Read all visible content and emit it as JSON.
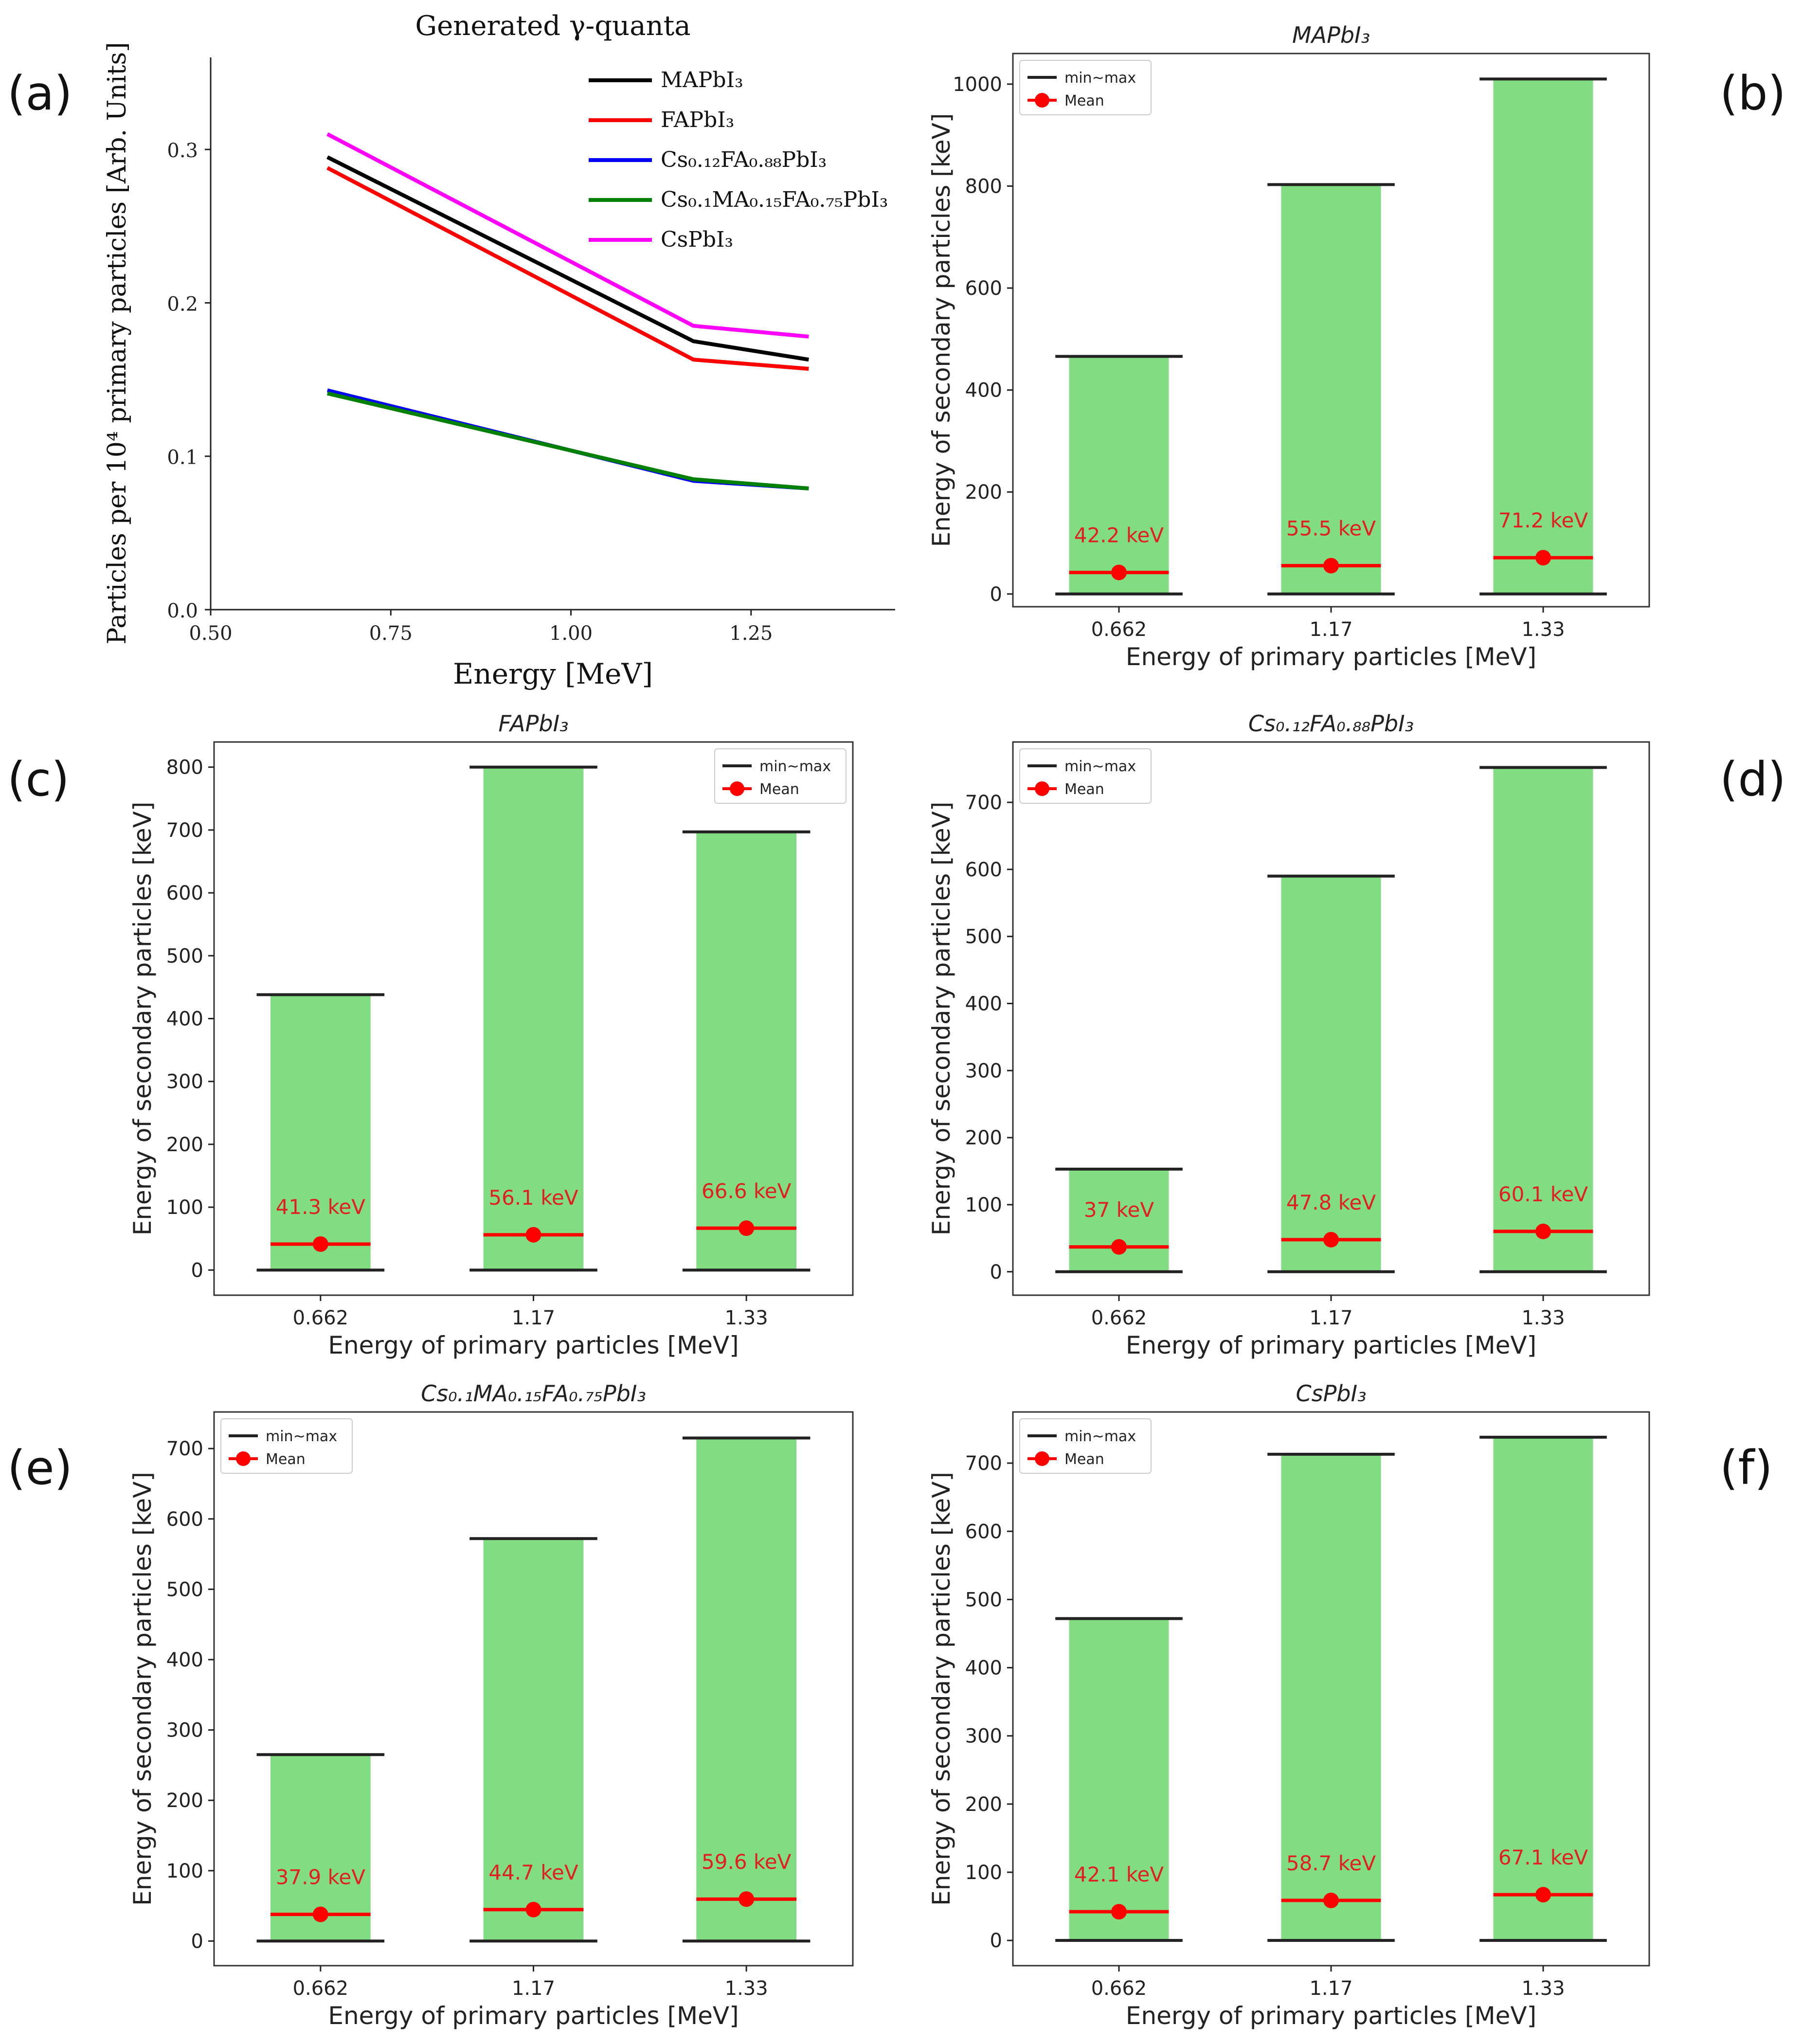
{
  "colors": {
    "bar_fill": "#82dd82",
    "minmax_line": "#222222",
    "mean": "#ff0000",
    "mean_label": "#e02020",
    "frame": "#333333"
  },
  "panel_labels": [
    "(a)",
    "(b)",
    "(c)",
    "(d)",
    "(e)",
    "(f)"
  ],
  "chart_data": [
    {
      "id": "a",
      "type": "line",
      "title": "Generated γ-quanta",
      "xlabel": "Energy [MeV]",
      "ylabel": "Particles per 10⁴ primary particles [Arb. Units]",
      "xlim": [
        0.5,
        1.45
      ],
      "ylim": [
        0,
        0.36
      ],
      "xticks": [
        0.5,
        0.75,
        1.0,
        1.25
      ],
      "xtick_labels": [
        "0.50",
        "0.75",
        "1.00",
        "1.25"
      ],
      "yticks": [
        0,
        0.1,
        0.2,
        0.3
      ],
      "ytick_labels": [
        "0.0",
        "0.1",
        "0.2",
        "0.3"
      ],
      "x": [
        0.662,
        1.17,
        1.33
      ],
      "series": [
        {
          "name": "MAPbI₃",
          "color": "#000000",
          "values": [
            0.295,
            0.175,
            0.163
          ]
        },
        {
          "name": "FAPbI₃",
          "color": "#ff0000",
          "values": [
            0.288,
            0.163,
            0.157
          ]
        },
        {
          "name": "Cs₀.₁₂FA₀.₈₈PbI₃",
          "color": "#0000ff",
          "values": [
            0.143,
            0.084,
            0.079
          ]
        },
        {
          "name": "Cs₀.₁MA₀.₁₅FA₀.₇₅PbI₃",
          "color": "#008000",
          "values": [
            0.141,
            0.085,
            0.079
          ]
        },
        {
          "name": "CsPbI₃",
          "color": "#ff00ff",
          "values": [
            0.31,
            0.185,
            0.178
          ]
        }
      ],
      "legend": "top-right"
    },
    {
      "id": "b",
      "type": "bar",
      "title": "MAPbI₃",
      "xlabel": "Energy of primary particles [MeV]",
      "ylabel": "Energy of secondary particles [keV]",
      "categories": [
        "0.662",
        "1.17",
        "1.33"
      ],
      "min": [
        0,
        0,
        0
      ],
      "max": [
        466,
        803,
        1010
      ],
      "mean": [
        42.2,
        55.5,
        71.2
      ],
      "mean_labels": [
        "42.2 keV",
        "55.5 keV",
        "71.2 keV"
      ],
      "ylim": [
        -25,
        1060
      ],
      "yticks": [
        0,
        200,
        400,
        600,
        800,
        1000
      ],
      "ytick_labels": [
        "0",
        "200",
        "400",
        "600",
        "800",
        "1000"
      ],
      "legend": [
        "min~max",
        "Mean"
      ],
      "legend_pos": "top-left"
    },
    {
      "id": "c",
      "type": "bar",
      "title": "FAPbI₃",
      "xlabel": "Energy of primary particles [MeV]",
      "ylabel": "Energy of secondary particles [keV]",
      "categories": [
        "0.662",
        "1.17",
        "1.33"
      ],
      "min": [
        0,
        0,
        0
      ],
      "max": [
        438,
        800,
        697
      ],
      "mean": [
        41.3,
        56.1,
        66.6
      ],
      "mean_labels": [
        "41.3 keV",
        "56.1 keV",
        "66.6 keV"
      ],
      "ylim": [
        -40,
        840
      ],
      "yticks": [
        0,
        100,
        200,
        300,
        400,
        500,
        600,
        700,
        800
      ],
      "ytick_labels": [
        "0",
        "100",
        "200",
        "300",
        "400",
        "500",
        "600",
        "700",
        "800"
      ],
      "legend": [
        "min~max",
        "Mean"
      ],
      "legend_pos": "top-right"
    },
    {
      "id": "d",
      "type": "bar",
      "title": "Cs₀.₁₂FA₀.₈₈PbI₃",
      "xlabel": "Energy of primary particles [MeV]",
      "ylabel": "Energy of secondary particles [keV]",
      "categories": [
        "0.662",
        "1.17",
        "1.33"
      ],
      "min": [
        0,
        0,
        0
      ],
      "max": [
        153,
        590,
        752
      ],
      "mean": [
        37,
        47.8,
        60.1
      ],
      "mean_labels": [
        "37 keV",
        "47.8 keV",
        "60.1 keV"
      ],
      "ylim": [
        -35,
        790
      ],
      "yticks": [
        0,
        100,
        200,
        300,
        400,
        500,
        600,
        700
      ],
      "ytick_labels": [
        "0",
        "100",
        "200",
        "300",
        "400",
        "500",
        "600",
        "700"
      ],
      "legend": [
        "min~max",
        "Mean"
      ],
      "legend_pos": "top-left"
    },
    {
      "id": "e",
      "type": "bar",
      "title": "Cs₀.₁MA₀.₁₅FA₀.₇₅PbI₃",
      "xlabel": "Energy of primary particles [MeV]",
      "ylabel": "Energy of secondary particles [keV]",
      "categories": [
        "0.662",
        "1.17",
        "1.33"
      ],
      "min": [
        0,
        0,
        0
      ],
      "max": [
        265,
        572,
        715
      ],
      "mean": [
        37.9,
        44.7,
        59.6
      ],
      "mean_labels": [
        "37.9 keV",
        "44.7 keV",
        "59.6 keV"
      ],
      "ylim": [
        -35,
        752
      ],
      "yticks": [
        0,
        100,
        200,
        300,
        400,
        500,
        600,
        700
      ],
      "ytick_labels": [
        "0",
        "100",
        "200",
        "300",
        "400",
        "500",
        "600",
        "700"
      ],
      "legend": [
        "min~max",
        "Mean"
      ],
      "legend_pos": "top-left"
    },
    {
      "id": "f",
      "type": "bar",
      "title": "CsPbI₃",
      "xlabel": "Energy of primary particles [MeV]",
      "ylabel": "Energy of secondary particles [keV]",
      "categories": [
        "0.662",
        "1.17",
        "1.33"
      ],
      "min": [
        0,
        0,
        0
      ],
      "max": [
        472,
        713,
        738
      ],
      "mean": [
        42.1,
        58.7,
        67.1
      ],
      "mean_labels": [
        "42.1 keV",
        "58.7 keV",
        "67.1 keV"
      ],
      "ylim": [
        -37,
        775
      ],
      "yticks": [
        0,
        100,
        200,
        300,
        400,
        500,
        600,
        700
      ],
      "ytick_labels": [
        "0",
        "100",
        "200",
        "300",
        "400",
        "500",
        "600",
        "700"
      ],
      "legend": [
        "min~max",
        "Mean"
      ],
      "legend_pos": "top-left"
    }
  ]
}
